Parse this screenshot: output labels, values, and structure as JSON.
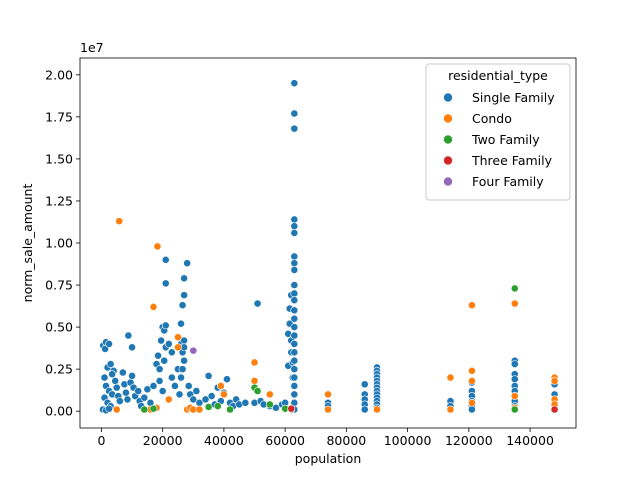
{
  "chart_data": {
    "type": "scatter",
    "title": "",
    "xlabel": "population",
    "ylabel": "norm_sale_amount",
    "y_offset_label": "1e7",
    "xlim": [
      -7000,
      155000
    ],
    "ylim": [
      -1000000,
      21000000
    ],
    "x_ticks": [
      0,
      20000,
      40000,
      60000,
      80000,
      100000,
      120000,
      140000
    ],
    "x_tick_labels": [
      "0",
      "20000",
      "40000",
      "60000",
      "80000",
      "100000",
      "120000",
      "140000"
    ],
    "y_ticks": [
      0,
      2500000,
      5000000,
      7500000,
      10000000,
      12500000,
      15000000,
      17500000,
      20000000
    ],
    "y_tick_labels": [
      "0.00",
      "0.25",
      "0.50",
      "0.75",
      "1.00",
      "1.25",
      "1.50",
      "1.75",
      "2.00"
    ],
    "grid": false,
    "legend": {
      "title": "residential_type",
      "placement": "top-right",
      "entries": [
        "Single Family",
        "Condo",
        "Two Family",
        "Three Family",
        "Four Family"
      ]
    },
    "colors": {
      "Single Family": "#1f77b4",
      "Condo": "#ff7f0e",
      "Two Family": "#2ca02c",
      "Three Family": "#d62728",
      "Four Family": "#9467bd"
    },
    "series": [
      {
        "name": "Single Family",
        "points": [
          [
            600,
            3900000
          ],
          [
            1200,
            3700000
          ],
          [
            1500,
            4100000
          ],
          [
            2500,
            4000000
          ],
          [
            2000,
            2600000
          ],
          [
            3000,
            2800000
          ],
          [
            1000,
            2000000
          ],
          [
            1500,
            1500000
          ],
          [
            2500,
            1200000
          ],
          [
            3500,
            1000000
          ],
          [
            1000,
            800000
          ],
          [
            2000,
            500000
          ],
          [
            3000,
            300000
          ],
          [
            500,
            100000
          ],
          [
            1500,
            50000
          ],
          [
            2500,
            150000
          ],
          [
            4000,
            2400000
          ],
          [
            4500,
            1800000
          ],
          [
            3500,
            2200000
          ],
          [
            5000,
            1400000
          ],
          [
            5500,
            900000
          ],
          [
            6000,
            600000
          ],
          [
            7000,
            2300000
          ],
          [
            7500,
            1600000
          ],
          [
            8000,
            1100000
          ],
          [
            8500,
            700000
          ],
          [
            8800,
            4500000
          ],
          [
            9500,
            1700000
          ],
          [
            10000,
            3800000
          ],
          [
            10500,
            1400000
          ],
          [
            10000,
            2100000
          ],
          [
            11000,
            900000
          ],
          [
            12000,
            1200000
          ],
          [
            12500,
            600000
          ],
          [
            13000,
            300000
          ],
          [
            14000,
            800000
          ],
          [
            15000,
            1300000
          ],
          [
            16000,
            500000
          ],
          [
            17000,
            1500000
          ],
          [
            18000,
            2800000
          ],
          [
            18500,
            3300000
          ],
          [
            19000,
            2500000
          ],
          [
            19500,
            4200000
          ],
          [
            20000,
            5000000
          ],
          [
            20500,
            4800000
          ],
          [
            21000,
            5100000
          ],
          [
            21000,
            3800000
          ],
          [
            20500,
            3000000
          ],
          [
            19000,
            1800000
          ],
          [
            20000,
            1200000
          ],
          [
            21000,
            7600000
          ],
          [
            21000,
            9000000
          ],
          [
            22000,
            4000000
          ],
          [
            23000,
            3500000
          ],
          [
            23000,
            2000000
          ],
          [
            24000,
            1500000
          ],
          [
            25000,
            2500000
          ],
          [
            25500,
            1000000
          ],
          [
            26000,
            4000000
          ],
          [
            26500,
            3500000
          ],
          [
            27000,
            4200000
          ],
          [
            27000,
            3800000
          ],
          [
            27000,
            3000000
          ],
          [
            26500,
            2500000
          ],
          [
            26000,
            2000000
          ],
          [
            26000,
            5200000
          ],
          [
            26500,
            6300000
          ],
          [
            27000,
            6900000
          ],
          [
            27000,
            7900000
          ],
          [
            28000,
            8800000
          ],
          [
            28500,
            1500000
          ],
          [
            29000,
            1000000
          ],
          [
            30000,
            700000
          ],
          [
            31000,
            1200000
          ],
          [
            32000,
            500000
          ],
          [
            34000,
            700000
          ],
          [
            35000,
            2100000
          ],
          [
            36000,
            900000
          ],
          [
            37000,
            400000
          ],
          [
            38000,
            1400000
          ],
          [
            39000,
            600000
          ],
          [
            40000,
            1100000
          ],
          [
            41000,
            1900000
          ],
          [
            42000,
            500000
          ],
          [
            43000,
            300000
          ],
          [
            44000,
            700000
          ],
          [
            45000,
            400000
          ],
          [
            47000,
            500000
          ],
          [
            50000,
            500000
          ],
          [
            51000,
            6400000
          ],
          [
            52000,
            600000
          ],
          [
            53000,
            400000
          ],
          [
            55000,
            300000
          ],
          [
            57000,
            200000
          ],
          [
            59000,
            400000
          ],
          [
            60000,
            500000
          ],
          [
            61000,
            2700000
          ],
          [
            61000,
            4600000
          ],
          [
            61500,
            5200000
          ],
          [
            61500,
            6100000
          ],
          [
            62000,
            4200000
          ],
          [
            62000,
            3500000
          ],
          [
            62000,
            6900000
          ],
          [
            62500,
            2900000
          ],
          [
            62500,
            2000000
          ],
          [
            63000,
            1500000
          ],
          [
            63000,
            1000000
          ],
          [
            63000,
            19500000
          ],
          [
            63000,
            17700000
          ],
          [
            63000,
            16800000
          ],
          [
            63000,
            11400000
          ],
          [
            63000,
            11000000
          ],
          [
            63000,
            10600000
          ],
          [
            63000,
            9200000
          ],
          [
            63000,
            8800000
          ],
          [
            63000,
            8400000
          ],
          [
            63000,
            7500000
          ],
          [
            63000,
            7000000
          ],
          [
            63000,
            6600000
          ],
          [
            63000,
            6000000
          ],
          [
            63000,
            5500000
          ],
          [
            63000,
            5000000
          ],
          [
            63000,
            4500000
          ],
          [
            63000,
            4000000
          ],
          [
            63000,
            3500000
          ],
          [
            63000,
            3000000
          ],
          [
            63000,
            2500000
          ],
          [
            63000,
            2000000
          ],
          [
            63000,
            1500000
          ],
          [
            63000,
            1000000
          ],
          [
            63000,
            500000
          ],
          [
            63000,
            100000
          ],
          [
            74000,
            500000
          ],
          [
            74000,
            300000
          ],
          [
            86000,
            1600000
          ],
          [
            86000,
            1000000
          ],
          [
            86000,
            700000
          ],
          [
            86000,
            400000
          ],
          [
            86000,
            100000
          ],
          [
            90000,
            2600000
          ],
          [
            90000,
            2400000
          ],
          [
            90000,
            2200000
          ],
          [
            90000,
            2000000
          ],
          [
            90000,
            1800000
          ],
          [
            90000,
            1600000
          ],
          [
            90000,
            1400000
          ],
          [
            90000,
            1200000
          ],
          [
            90000,
            1000000
          ],
          [
            90000,
            800000
          ],
          [
            90000,
            600000
          ],
          [
            90000,
            400000
          ],
          [
            90000,
            200000
          ],
          [
            114000,
            600000
          ],
          [
            114000,
            300000
          ],
          [
            121000,
            1700000
          ],
          [
            121000,
            1200000
          ],
          [
            121000,
            900000
          ],
          [
            121000,
            600000
          ],
          [
            121000,
            300000
          ],
          [
            121000,
            100000
          ],
          [
            135000,
            3000000
          ],
          [
            135000,
            2800000
          ],
          [
            135000,
            2200000
          ],
          [
            135000,
            1900000
          ],
          [
            135000,
            1500000
          ],
          [
            135000,
            1200000
          ],
          [
            135000,
            900000
          ],
          [
            135000,
            600000
          ],
          [
            135000,
            300000
          ],
          [
            135000,
            100000
          ],
          [
            148000,
            1600000
          ],
          [
            148000,
            1000000
          ],
          [
            148000,
            600000
          ],
          [
            148000,
            300000
          ]
        ]
      },
      {
        "name": "Condo",
        "points": [
          [
            5800,
            11300000
          ],
          [
            5000,
            100000
          ],
          [
            17000,
            6200000
          ],
          [
            18300,
            9800000
          ],
          [
            25000,
            4400000
          ],
          [
            25000,
            3800000
          ],
          [
            18000,
            200000
          ],
          [
            16000,
            100000
          ],
          [
            22000,
            700000
          ],
          [
            28000,
            100000
          ],
          [
            29000,
            200000
          ],
          [
            30000,
            100000
          ],
          [
            32000,
            100000
          ],
          [
            39000,
            1500000
          ],
          [
            40000,
            1000000
          ],
          [
            50000,
            2900000
          ],
          [
            50000,
            1800000
          ],
          [
            55000,
            1000000
          ],
          [
            74000,
            1000000
          ],
          [
            74000,
            100000
          ],
          [
            90000,
            100000
          ],
          [
            114000,
            2000000
          ],
          [
            114000,
            100000
          ],
          [
            121000,
            6300000
          ],
          [
            121000,
            2400000
          ],
          [
            121000,
            1800000
          ],
          [
            121000,
            500000
          ],
          [
            135000,
            6400000
          ],
          [
            135000,
            900000
          ],
          [
            135000,
            200000
          ],
          [
            148000,
            2000000
          ],
          [
            148000,
            1800000
          ],
          [
            148000,
            700000
          ],
          [
            148000,
            400000
          ]
        ]
      },
      {
        "name": "Two Family",
        "points": [
          [
            14000,
            100000
          ],
          [
            17000,
            150000
          ],
          [
            35000,
            250000
          ],
          [
            38000,
            300000
          ],
          [
            42000,
            100000
          ],
          [
            50000,
            1400000
          ],
          [
            51000,
            1200000
          ],
          [
            55000,
            400000
          ],
          [
            60000,
            150000
          ],
          [
            62000,
            100000
          ],
          [
            135000,
            7300000
          ],
          [
            135000,
            100000
          ]
        ]
      },
      {
        "name": "Three Family",
        "points": [
          [
            62000,
            150000
          ],
          [
            148000,
            100000
          ]
        ]
      },
      {
        "name": "Four Family",
        "points": [
          [
            30000,
            3600000
          ]
        ]
      }
    ]
  }
}
